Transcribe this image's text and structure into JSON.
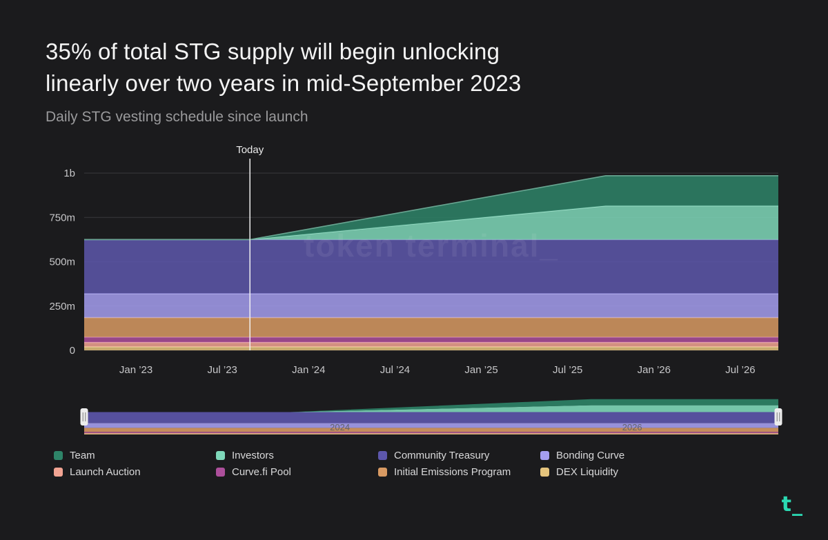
{
  "header": {
    "title_line1": "35% of total STG supply will begin unlocking",
    "title_line2": "linearly over two years in mid-September 2023",
    "subtitle": "Daily STG vesting schedule since launch"
  },
  "branding": {
    "logo_text": "t_",
    "logo_color": "#2bd9b2",
    "watermark": "token terminal_"
  },
  "legend": {
    "items": [
      {
        "label": "Team",
        "color": "#2e8468"
      },
      {
        "label": "Investors",
        "color": "#7fd8ba"
      },
      {
        "label": "Community Treasury",
        "color": "#5d57ac"
      },
      {
        "label": "Bonding Curve",
        "color": "#a59ef0"
      },
      {
        "label": "Launch Auction",
        "color": "#f2a493"
      },
      {
        "label": "Curve.fi Pool",
        "color": "#ad4f9b"
      },
      {
        "label": "Initial Emissions Program",
        "color": "#d89a63"
      },
      {
        "label": "DEX Liquidity",
        "color": "#e5c47d"
      }
    ]
  },
  "chart_data": {
    "type": "area",
    "stacked": true,
    "title": "Daily STG vesting schedule since launch",
    "x_domain": [
      2022.7,
      2026.72
    ],
    "y_domain": [
      0,
      1000
    ],
    "y_unit": "STG (millions)",
    "x": [
      2022.7,
      2023.66,
      2025.72,
      2026.72
    ],
    "series": [
      {
        "name": "DEX Liquidity",
        "color": "#e5c47d",
        "values": [
          20,
          20,
          20,
          20
        ]
      },
      {
        "name": "Launch Auction",
        "color": "#f2a493",
        "values": [
          25,
          25,
          25,
          25
        ]
      },
      {
        "name": "Curve.fi Pool",
        "color": "#ad4f9b",
        "values": [
          30,
          30,
          30,
          30
        ]
      },
      {
        "name": "Initial Emissions Program",
        "color": "#d89a63",
        "values": [
          110,
          110,
          110,
          110
        ]
      },
      {
        "name": "Bonding Curve",
        "color": "#a59ef0",
        "values": [
          135,
          135,
          135,
          135
        ]
      },
      {
        "name": "Community Treasury",
        "color": "#5d57ac",
        "values": [
          305,
          305,
          305,
          305
        ]
      },
      {
        "name": "Investors",
        "color": "#7fd8ba",
        "values": [
          0,
          0,
          190,
          190
        ]
      },
      {
        "name": "Team",
        "color": "#2e8468",
        "values": [
          0,
          0,
          170,
          170
        ]
      }
    ],
    "y_ticks": [
      {
        "value": 0,
        "label": "0"
      },
      {
        "value": 250,
        "label": "250m"
      },
      {
        "value": 500,
        "label": "500m"
      },
      {
        "value": 750,
        "label": "750m"
      },
      {
        "value": 1000,
        "label": "1b"
      }
    ],
    "x_ticks": [
      {
        "value": 2023.0,
        "label": "Jan ’23"
      },
      {
        "value": 2023.5,
        "label": "Jul ’23"
      },
      {
        "value": 2024.0,
        "label": "Jan ’24"
      },
      {
        "value": 2024.5,
        "label": "Jul ’24"
      },
      {
        "value": 2025.0,
        "label": "Jan ’25"
      },
      {
        "value": 2025.5,
        "label": "Jul ’25"
      },
      {
        "value": 2026.0,
        "label": "Jan ’26"
      },
      {
        "value": 2026.5,
        "label": "Jul ’26"
      }
    ],
    "today": {
      "value": 2023.66,
      "label": "Today"
    },
    "grid": true,
    "legend_position": "bottom",
    "brush": {
      "x_domain": [
        2022.25,
        2027.0
      ],
      "x": [
        2022.25,
        2023.66,
        2025.72,
        2027.0
      ],
      "year_labels": [
        {
          "value": 2024,
          "label": "2024"
        },
        {
          "value": 2026,
          "label": "2026"
        }
      ]
    }
  }
}
